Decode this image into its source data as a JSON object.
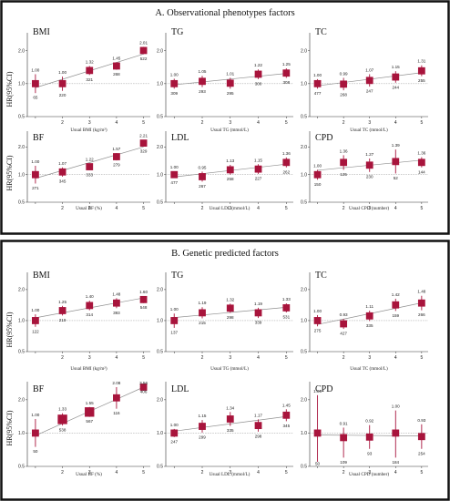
{
  "panels": [
    {
      "title": "A. Observational phenotypes factors",
      "ylabel": "HR(95%CI)",
      "charts": [
        {
          "label": "BMI",
          "xlabel": "Usual BMI (kg/m²)",
          "yticks": [
            0.5,
            1.0,
            2.0
          ],
          "ylim": [
            0.5,
            2.6
          ],
          "x": [
            1,
            2,
            3,
            4,
            5
          ],
          "hr": [
            1.0,
            1.0,
            1.32,
            1.45,
            2.01
          ],
          "lo": [
            0.82,
            0.86,
            1.2,
            1.34,
            1.86
          ],
          "hi": [
            1.22,
            1.16,
            1.45,
            1.57,
            2.17
          ],
          "size": [
            3,
            3,
            3,
            3,
            3
          ],
          "hr_labels": [
            "1.00",
            "1.00",
            "1.32",
            "1.45",
            "2.01"
          ],
          "n_labels": [
            "65",
            "220",
            "321",
            "268",
            "522"
          ]
        },
        {
          "label": "TG",
          "xlabel": "Usual TG (mmol/L)",
          "yticks": [
            0.5,
            1.0,
            2.0
          ],
          "ylim": [
            0.5,
            2.6
          ],
          "x": [
            1,
            2,
            3,
            4,
            5
          ],
          "hr": [
            1.0,
            1.05,
            1.01,
            1.22,
            1.25
          ],
          "lo": [
            0.9,
            0.93,
            0.9,
            1.1,
            1.13
          ],
          "hi": [
            1.11,
            1.18,
            1.13,
            1.35,
            1.38
          ],
          "size": [
            3,
            3,
            3,
            3,
            3
          ],
          "hr_labels": [
            "1.00",
            "1.05",
            "1.01",
            "1.22",
            "1.25"
          ],
          "n_labels": [
            "309",
            "293",
            "295",
            "300",
            "308"
          ]
        },
        {
          "label": "TC",
          "xlabel": "Usual TC (mmol/L)",
          "yticks": [
            0.5,
            1.0,
            2.0
          ],
          "ylim": [
            0.5,
            2.6
          ],
          "x": [
            1,
            2,
            3,
            4,
            5
          ],
          "hr": [
            1.0,
            0.99,
            1.07,
            1.15,
            1.31
          ],
          "lo": [
            0.9,
            0.87,
            0.94,
            1.02,
            1.17
          ],
          "hi": [
            1.1,
            1.13,
            1.22,
            1.3,
            1.47
          ],
          "size": [
            3,
            3,
            3,
            3,
            3
          ],
          "hr_labels": [
            "1.00",
            "0.99",
            "1.07",
            "1.15",
            "1.31"
          ],
          "n_labels": [
            "477",
            "268",
            "247",
            "244",
            "255"
          ]
        },
        {
          "label": "BF",
          "xlabel": "Usual BF (%)",
          "yticks": [
            0.5,
            1.0,
            2.0
          ],
          "ylim": [
            0.5,
            2.6
          ],
          "x": [
            1,
            2,
            3,
            4,
            5
          ],
          "hr": [
            1.0,
            1.07,
            1.22,
            1.57,
            2.21
          ],
          "lo": [
            0.8,
            0.95,
            1.12,
            1.43,
            2.03
          ],
          "hi": [
            1.25,
            1.2,
            1.33,
            1.72,
            2.4
          ],
          "size": [
            3,
            3,
            3,
            3,
            3
          ],
          "hr_labels": [
            "1.00",
            "1.07",
            "1.22",
            "1.57",
            "2.21"
          ],
          "n_labels": [
            "271",
            "345",
            "333",
            "279",
            "329"
          ]
        },
        {
          "label": "LDL",
          "xlabel": "Usual LDL (mmol/L)",
          "yticks": [
            0.5,
            1.0,
            2.0
          ],
          "ylim": [
            0.5,
            2.6
          ],
          "x": [
            1,
            2,
            3,
            4,
            5
          ],
          "hr": [
            1.0,
            0.95,
            1.13,
            1.15,
            1.36
          ],
          "lo": [
            0.92,
            0.84,
            1.0,
            1.02,
            1.2
          ],
          "hi": [
            1.09,
            1.08,
            1.28,
            1.3,
            1.54
          ],
          "size": [
            3,
            3,
            3,
            3,
            3
          ],
          "hr_labels": [
            "1.00",
            "0.95",
            "1.13",
            "1.15",
            "1.36"
          ],
          "n_labels": [
            "477",
            "267",
            "258",
            "227",
            "262"
          ]
        },
        {
          "label": "CPD",
          "xlabel": "Usual CPD (number)",
          "yticks": [
            0.5,
            1.0,
            2.0
          ],
          "ylim": [
            0.5,
            2.6
          ],
          "x": [
            1,
            2,
            3,
            4,
            5
          ],
          "hr": [
            1.0,
            1.36,
            1.27,
            1.39,
            1.36
          ],
          "lo": [
            0.88,
            1.13,
            1.07,
            1.03,
            1.2
          ],
          "hi": [
            1.13,
            1.63,
            1.5,
            1.88,
            1.55
          ],
          "size": [
            3,
            3,
            3,
            3,
            3
          ],
          "hr_labels": [
            "1.00",
            "1.36",
            "1.27",
            "1.39",
            "1.36"
          ],
          "n_labels": [
            "150",
            "125",
            "230",
            "52",
            "144"
          ]
        }
      ]
    },
    {
      "title": "B. Genetic predicted factors",
      "ylabel": "HR(95%CI)",
      "charts": [
        {
          "label": "BMI",
          "xlabel": "Usual BMI (kg/m²)",
          "yticks": [
            0.5,
            1.0,
            2.0
          ],
          "ylim": [
            0.5,
            2.6
          ],
          "x": [
            1,
            2,
            3,
            4,
            5
          ],
          "hr": [
            1.0,
            1.25,
            1.4,
            1.48,
            1.6
          ],
          "lo": [
            0.87,
            1.12,
            1.26,
            1.32,
            1.48
          ],
          "hi": [
            1.15,
            1.39,
            1.56,
            1.65,
            1.73
          ],
          "size": [
            3,
            3,
            3,
            3,
            3
          ],
          "hr_labels": [
            "1.00",
            "1.25",
            "1.40",
            "1.48",
            "1.60"
          ],
          "n_labels": [
            "122",
            "219",
            "314",
            "393",
            "548"
          ]
        },
        {
          "label": "TG",
          "xlabel": "Usual TG (mmol/L)",
          "yticks": [
            0.5,
            1.0,
            2.0
          ],
          "ylim": [
            0.5,
            2.6
          ],
          "x": [
            1,
            2,
            3,
            4,
            5
          ],
          "hr": [
            1.0,
            1.19,
            1.32,
            1.19,
            1.33
          ],
          "lo": [
            0.85,
            1.05,
            1.19,
            1.06,
            1.2
          ],
          "hi": [
            1.17,
            1.35,
            1.46,
            1.33,
            1.47
          ],
          "size": [
            3,
            3,
            3,
            3,
            3
          ],
          "hr_labels": [
            "1.00",
            "1.19",
            "1.32",
            "1.19",
            "1.33"
          ],
          "n_labels": [
            "137",
            "215",
            "298",
            "339",
            "531"
          ]
        },
        {
          "label": "TC",
          "xlabel": "Usual TC (mmol/L)",
          "yticks": [
            0.5,
            1.0,
            2.0
          ],
          "ylim": [
            0.5,
            2.6
          ],
          "x": [
            1,
            2,
            3,
            4,
            5
          ],
          "hr": [
            1.0,
            0.93,
            1.11,
            1.42,
            1.48
          ],
          "lo": [
            0.88,
            0.83,
            0.99,
            1.24,
            1.26
          ],
          "hi": [
            1.13,
            1.04,
            1.25,
            1.63,
            1.74
          ],
          "size": [
            3,
            3,
            3,
            3,
            3
          ],
          "hr_labels": [
            "1.00",
            "0.93",
            "1.11",
            "1.42",
            "1.48"
          ],
          "n_labels": [
            "275",
            "427",
            "335",
            "159",
            "266"
          ]
        },
        {
          "label": "BF",
          "xlabel": "Usual BF (%)",
          "yticks": [
            0.5,
            1.0,
            2.0
          ],
          "ylim": [
            0.5,
            2.6
          ],
          "x": [
            1,
            2,
            3,
            4,
            5
          ],
          "hr": [
            1.0,
            1.33,
            1.55,
            2.08,
            3.56
          ],
          "lo": [
            0.75,
            1.17,
            1.4,
            1.66,
            2.82
          ],
          "hi": [
            1.34,
            1.51,
            1.72,
            2.61,
            4.5
          ],
          "size": [
            3,
            4,
            4,
            3,
            3
          ],
          "hr_labels": [
            "1.00",
            "1.33",
            "1.55",
            "2.08",
            "3.56"
          ],
          "n_labels": [
            "50",
            "538",
            "567",
            "116",
            "406"
          ]
        },
        {
          "label": "LDL",
          "xlabel": "Usual LDL (mmol/L)",
          "yticks": [
            0.5,
            1.0,
            2.0
          ],
          "ylim": [
            0.5,
            2.6
          ],
          "x": [
            1,
            2,
            3,
            4,
            5
          ],
          "hr": [
            1.0,
            1.15,
            1.34,
            1.17,
            1.45
          ],
          "lo": [
            0.92,
            1.01,
            1.16,
            1.03,
            1.28
          ],
          "hi": [
            1.09,
            1.31,
            1.55,
            1.33,
            1.64
          ],
          "size": [
            3,
            3,
            3,
            3,
            3
          ],
          "hr_labels": [
            "1.00",
            "1.15",
            "1.34",
            "1.17",
            "1.45"
          ],
          "n_labels": [
            "247",
            "299",
            "335",
            "298",
            "345"
          ]
        },
        {
          "label": "CPD",
          "xlabel": "Usual CPD (number)",
          "yticks": [
            0.5,
            1.0,
            2.0
          ],
          "ylim": [
            0.5,
            2.6
          ],
          "x": [
            1,
            2,
            3,
            4,
            5
          ],
          "hr": [
            1.0,
            0.91,
            0.92,
            1.0,
            0.93
          ],
          "lo": [
            0.55,
            0.6,
            0.72,
            0.6,
            0.72
          ],
          "hi": [
            2.2,
            1.12,
            1.18,
            1.6,
            1.2
          ],
          "size": [
            3,
            3,
            3,
            3,
            3
          ],
          "hr_labels": [
            "1.00",
            "0.91",
            "0.92",
            "1.00",
            "0.93"
          ],
          "n_labels": [
            "50",
            "109",
            "93",
            "184",
            "254"
          ]
        }
      ]
    }
  ],
  "colors": {
    "marker": "#a8143c",
    "trend": "#909090",
    "ref_line": "#999999",
    "axis": "#333333",
    "border": "#111111"
  },
  "chart_data": [
    {
      "type": "scatter",
      "title": "A. Observational phenotypes factors — BMI",
      "xlabel": "Usual BMI (kg/m²)",
      "ylabel": "HR(95%CI)",
      "x": [
        1,
        2,
        3,
        4,
        5
      ],
      "y": [
        1.0,
        1.0,
        1.32,
        1.45,
        2.01
      ],
      "ylim": [
        0.5,
        2.6
      ],
      "log_y": true
    },
    {
      "type": "scatter",
      "title": "A. Observational phenotypes factors — TG",
      "xlabel": "Usual TG (mmol/L)",
      "ylabel": "HR(95%CI)",
      "x": [
        1,
        2,
        3,
        4,
        5
      ],
      "y": [
        1.0,
        1.05,
        1.01,
        1.22,
        1.25
      ],
      "log_y": true
    },
    {
      "type": "scatter",
      "title": "A. Observational phenotypes factors — TC",
      "xlabel": "Usual TC (mmol/L)",
      "ylabel": "HR(95%CI)",
      "x": [
        1,
        2,
        3,
        4,
        5
      ],
      "y": [
        1.0,
        0.99,
        1.07,
        1.15,
        1.31
      ],
      "log_y": true
    },
    {
      "type": "scatter",
      "title": "A. Observational phenotypes factors — BF",
      "xlabel": "Usual BF (%)",
      "ylabel": "HR(95%CI)",
      "x": [
        1,
        2,
        3,
        4,
        5
      ],
      "y": [
        1.0,
        1.07,
        1.22,
        1.57,
        2.21
      ],
      "log_y": true
    },
    {
      "type": "scatter",
      "title": "A. Observational phenotypes factors — LDL",
      "xlabel": "Usual LDL (mmol/L)",
      "ylabel": "HR(95%CI)",
      "x": [
        1,
        2,
        3,
        4,
        5
      ],
      "y": [
        1.0,
        0.95,
        1.13,
        1.15,
        1.36
      ],
      "log_y": true
    },
    {
      "type": "scatter",
      "title": "A. Observational phenotypes factors — CPD",
      "xlabel": "Usual CPD (number)",
      "ylabel": "HR(95%CI)",
      "x": [
        1,
        2,
        3,
        4,
        5
      ],
      "y": [
        1.0,
        1.36,
        1.27,
        1.39,
        1.36
      ],
      "log_y": true
    },
    {
      "type": "scatter",
      "title": "B. Genetic predicted factors — BMI",
      "xlabel": "Usual BMI (kg/m²)",
      "ylabel": "HR(95%CI)",
      "x": [
        1,
        2,
        3,
        4,
        5
      ],
      "y": [
        1.0,
        1.25,
        1.4,
        1.48,
        1.6
      ],
      "log_y": true
    },
    {
      "type": "scatter",
      "title": "B. Genetic predicted factors — TG",
      "xlabel": "Usual TG (mmol/L)",
      "ylabel": "HR(95%CI)",
      "x": [
        1,
        2,
        3,
        4,
        5
      ],
      "y": [
        1.0,
        1.19,
        1.32,
        1.19,
        1.33
      ],
      "log_y": true
    },
    {
      "type": "scatter",
      "title": "B. Genetic predicted factors — TC",
      "xlabel": "Usual TC (mmol/L)",
      "ylabel": "HR(95%CI)",
      "x": [
        1,
        2,
        3,
        4,
        5
      ],
      "y": [
        1.0,
        0.93,
        1.11,
        1.42,
        1.48
      ],
      "log_y": true
    },
    {
      "type": "scatter",
      "title": "B. Genetic predicted factors — BF",
      "xlabel": "Usual BF (%)",
      "ylabel": "HR(95%CI)",
      "x": [
        1,
        2,
        3,
        4,
        5
      ],
      "y": [
        1.0,
        1.33,
        1.55,
        2.08,
        3.56
      ],
      "log_y": true
    },
    {
      "type": "scatter",
      "title": "B. Genetic predicted factors — LDL",
      "xlabel": "Usual LDL (mmol/L)",
      "ylabel": "HR(95%CI)",
      "x": [
        1,
        2,
        3,
        4,
        5
      ],
      "y": [
        1.0,
        1.15,
        1.34,
        1.17,
        1.45
      ],
      "log_y": true
    },
    {
      "type": "scatter",
      "title": "B. Genetic predicted factors — CPD",
      "xlabel": "Usual CPD (number)",
      "ylabel": "HR(95%CI)",
      "x": [
        1,
        2,
        3,
        4,
        5
      ],
      "y": [
        1.0,
        0.91,
        0.92,
        1.0,
        0.93
      ],
      "log_y": true
    }
  ]
}
